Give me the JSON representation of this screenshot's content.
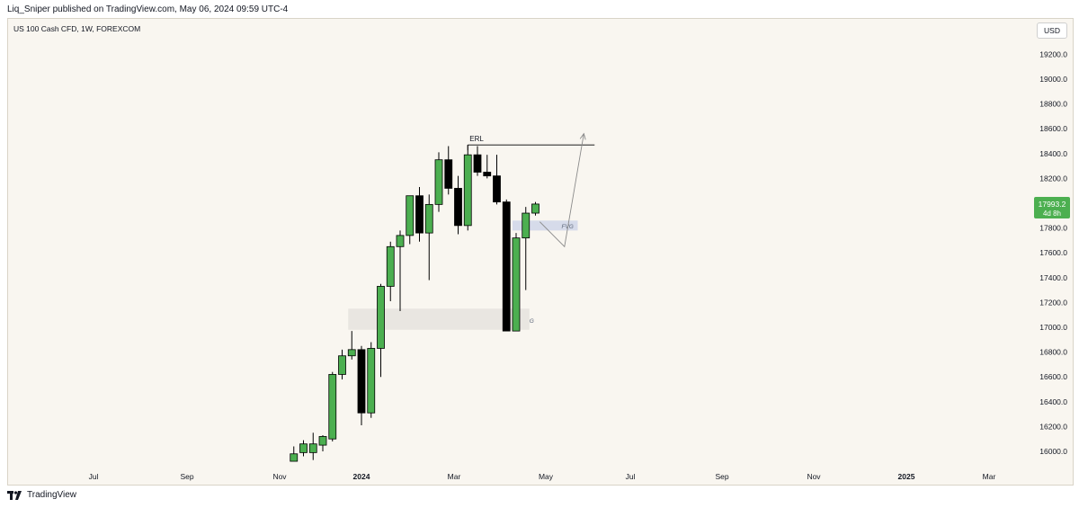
{
  "header": {
    "published_line": "Liq_Sniper published on TradingView.com, May 06, 2024 09:59 UTC-4"
  },
  "symbol_title": "US 100 Cash CFD, 1W, FOREXCOM",
  "currency_button": "USD",
  "price_badge": {
    "price": "17993.2",
    "countdown": "4d 8h",
    "color": "#4caf50"
  },
  "annotations": {
    "erl": "ERL",
    "fvg_upper": "FVG",
    "fvg_lower_partial": "G"
  },
  "footer": {
    "brand": "TradingView"
  },
  "colors": {
    "bull": "#4caf50",
    "bear": "#000000",
    "background": "#f9f6f0"
  },
  "chart_data": {
    "type": "candlestick",
    "timeframe": "1W",
    "ylim": [
      15900,
      19400
    ],
    "y_ticks": [
      "16000.0",
      "16200.0",
      "16400.0",
      "16600.0",
      "16800.0",
      "17000.0",
      "17200.0",
      "17400.0",
      "17600.0",
      "17800.0",
      "18000.0",
      "18200.0",
      "18400.0",
      "18600.0",
      "18800.0",
      "19000.0",
      "19200.0"
    ],
    "x_ticks": [
      {
        "label": "Jul",
        "bold": false
      },
      {
        "label": "Sep",
        "bold": false
      },
      {
        "label": "Nov",
        "bold": false
      },
      {
        "label": "2024",
        "bold": true
      },
      {
        "label": "Mar",
        "bold": false
      },
      {
        "label": "May",
        "bold": false
      },
      {
        "label": "Jul",
        "bold": false
      },
      {
        "label": "Sep",
        "bold": false
      },
      {
        "label": "Nov",
        "bold": false
      },
      {
        "label": "2025",
        "bold": true
      },
      {
        "label": "Mar",
        "bold": false
      }
    ],
    "candles": [
      {
        "date": "2023-11-13",
        "o": 15920,
        "h": 16040,
        "l": 15920,
        "c": 15980
      },
      {
        "date": "2023-11-20",
        "o": 15990,
        "h": 16090,
        "l": 15960,
        "c": 16060
      },
      {
        "date": "2023-11-27",
        "o": 15990,
        "h": 16150,
        "l": 15930,
        "c": 16060
      },
      {
        "date": "2023-12-04",
        "o": 16050,
        "h": 16130,
        "l": 16000,
        "c": 16120
      },
      {
        "date": "2023-12-11",
        "o": 16100,
        "h": 16640,
        "l": 16080,
        "c": 16620
      },
      {
        "date": "2023-12-18",
        "o": 16620,
        "h": 16820,
        "l": 16580,
        "c": 16770
      },
      {
        "date": "2023-12-25",
        "o": 16770,
        "h": 16970,
        "l": 16740,
        "c": 16820
      },
      {
        "date": "2024-01-01",
        "o": 16820,
        "h": 16850,
        "l": 16210,
        "c": 16310
      },
      {
        "date": "2024-01-08",
        "o": 16310,
        "h": 16880,
        "l": 16270,
        "c": 16830
      },
      {
        "date": "2024-01-15",
        "o": 16830,
        "h": 17350,
        "l": 16600,
        "c": 17330
      },
      {
        "date": "2024-01-22",
        "o": 17330,
        "h": 17690,
        "l": 17210,
        "c": 17650
      },
      {
        "date": "2024-01-29",
        "o": 17650,
        "h": 17780,
        "l": 17130,
        "c": 17740
      },
      {
        "date": "2024-02-05",
        "o": 17740,
        "h": 18060,
        "l": 17670,
        "c": 18060
      },
      {
        "date": "2024-02-12",
        "o": 18060,
        "h": 18130,
        "l": 17690,
        "c": 17760
      },
      {
        "date": "2024-02-19",
        "o": 17760,
        "h": 18070,
        "l": 17380,
        "c": 17990
      },
      {
        "date": "2024-02-26",
        "o": 17990,
        "h": 18410,
        "l": 17930,
        "c": 18350
      },
      {
        "date": "2024-03-04",
        "o": 18350,
        "h": 18460,
        "l": 18070,
        "c": 18120
      },
      {
        "date": "2024-03-11",
        "o": 18120,
        "h": 18220,
        "l": 17750,
        "c": 17820
      },
      {
        "date": "2024-03-18",
        "o": 17820,
        "h": 18470,
        "l": 17780,
        "c": 18390
      },
      {
        "date": "2024-03-25",
        "o": 18390,
        "h": 18460,
        "l": 18220,
        "c": 18250
      },
      {
        "date": "2024-04-01",
        "o": 18250,
        "h": 18390,
        "l": 18200,
        "c": 18220
      },
      {
        "date": "2024-04-08",
        "o": 18220,
        "h": 18390,
        "l": 17990,
        "c": 18010
      },
      {
        "date": "2024-04-15",
        "o": 18010,
        "h": 18030,
        "l": 16970,
        "c": 16970
      },
      {
        "date": "2024-04-22",
        "o": 16970,
        "h": 17760,
        "l": 16970,
        "c": 17720
      },
      {
        "date": "2024-04-29",
        "o": 17720,
        "h": 17970,
        "l": 17300,
        "c": 17920
      },
      {
        "date": "2024-05-06",
        "o": 17920,
        "h": 18010,
        "l": 17900,
        "c": 17993.2
      }
    ],
    "zones": [
      {
        "label": "FVG",
        "from_date": "2024-04-22",
        "to": "2024-06-03",
        "low": 17780,
        "high": 17860
      },
      {
        "label": "G",
        "from_date": "2023-12-25",
        "to": "2024-04-29",
        "low": 16980,
        "high": 17150
      }
    ],
    "erl_level": 18470,
    "projection": [
      {
        "date": "2024-05-13",
        "price": 17850
      },
      {
        "date": "2024-05-27",
        "price": 17650
      },
      {
        "date": "2024-06-10",
        "price": 18560
      }
    ]
  }
}
